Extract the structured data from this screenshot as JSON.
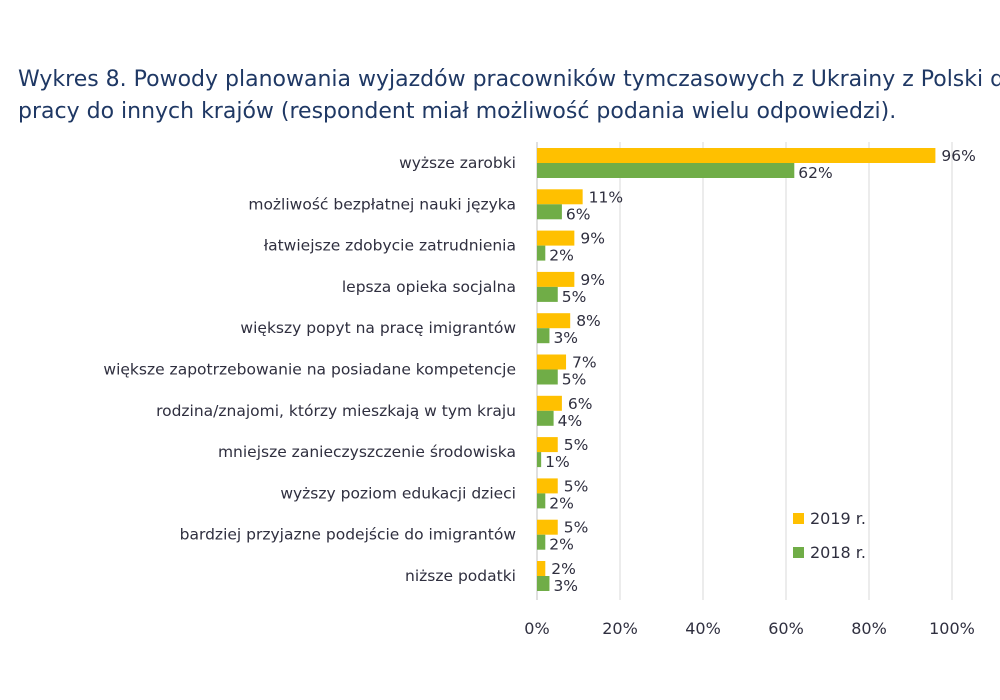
{
  "title_line1": "Wykres 8. Powody planowania wyjazdów pracowników tymczasowych z Ukrainy z Polski do",
  "title_line2": "pracy do innych krajów (respondent miał możliwość podania wielu odpowiedzi).",
  "colors": {
    "series_2019": "#ffc000",
    "series_2018": "#70ad47",
    "grid": "#d9d9d9"
  },
  "chart_data": {
    "type": "bar",
    "orientation": "horizontal",
    "title": "Wykres 8. Powody planowania wyjazdów pracowników tymczasowych z Ukrainy z Polski do pracy do innych krajów (respondent miał możliwość podania wielu odpowiedzi).",
    "categories": [
      "wyższe zarobki",
      "możliwość bezpłatnej nauki języka",
      "łatwiejsze zdobycie zatrudnienia",
      "lepsza opieka socjalna",
      "większy popyt na pracę imigrantów",
      "większe zapotrzebowanie na posiadane kompetencje",
      "rodzina/znajomi, którzy mieszkają w tym kraju",
      "mniejsze zanieczyszczenie środowiska",
      "wyższy poziom edukacji dzieci",
      "bardziej przyjazne podejście do imigrantów",
      "niższe podatki"
    ],
    "series": [
      {
        "name": "2019 r.",
        "values": [
          96,
          11,
          9,
          9,
          8,
          7,
          6,
          5,
          5,
          5,
          2
        ],
        "labels": [
          "96%",
          "11%",
          "9%",
          "9%",
          "8%",
          "7%",
          "6%",
          "5%",
          "5%",
          "5%",
          "2%"
        ]
      },
      {
        "name": "2018 r.",
        "values": [
          62,
          6,
          2,
          5,
          3,
          5,
          4,
          1,
          2,
          2,
          3
        ],
        "labels": [
          "62%",
          "6%",
          "2%",
          "5%",
          "3%",
          "5%",
          "4%",
          "1%",
          "2%",
          "2%",
          "3%"
        ]
      }
    ],
    "xlim": [
      0,
      100
    ],
    "xticks": [
      "0%",
      "20%",
      "40%",
      "60%",
      "80%",
      "100%"
    ],
    "grid": true,
    "legend_position": "bottom-right"
  }
}
